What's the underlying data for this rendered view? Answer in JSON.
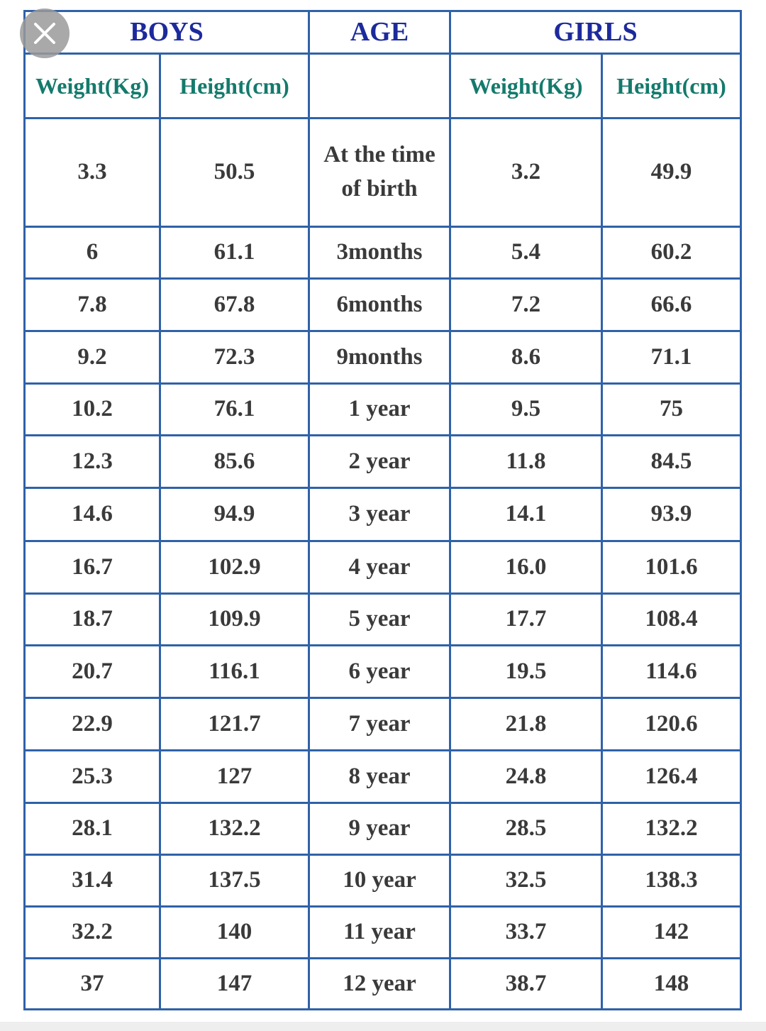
{
  "header": {
    "groups": [
      "BOYS",
      "AGE",
      "GIRLS"
    ],
    "columns": [
      "Weight(Kg)",
      "Height(cm)",
      "Weight(Kg)",
      "Height(cm)"
    ]
  },
  "table": {
    "rows": [
      [
        "3.3",
        "50.5",
        "At the time of birth",
        "3.2",
        "49.9"
      ],
      [
        "6",
        "61.1",
        "3months",
        "5.4",
        "60.2"
      ],
      [
        "7.8",
        "67.8",
        "6months",
        "7.2",
        "66.6"
      ],
      [
        "9.2",
        "72.3",
        "9months",
        "8.6",
        "71.1"
      ],
      [
        "10.2",
        "76.1",
        "1 year",
        "9.5",
        "75"
      ],
      [
        "12.3",
        "85.6",
        "2 year",
        "11.8",
        "84.5"
      ],
      [
        "14.6",
        "94.9",
        "3 year",
        "14.1",
        "93.9"
      ],
      [
        "16.7",
        "102.9",
        "4 year",
        "16.0",
        "101.6"
      ],
      [
        "18.7",
        "109.9",
        "5 year",
        "17.7",
        "108.4"
      ],
      [
        "20.7",
        "116.1",
        "6 year",
        "19.5",
        "114.6"
      ],
      [
        "22.9",
        "121.7",
        "7 year",
        "21.8",
        "120.6"
      ],
      [
        "25.3",
        "127",
        "8 year",
        "24.8",
        "126.4"
      ],
      [
        "28.1",
        "132.2",
        "9 year",
        "28.5",
        "132.2"
      ],
      [
        "31.4",
        "137.5",
        "10 year",
        "32.5",
        "138.3"
      ],
      [
        "32.2",
        "140",
        "11 year",
        "33.7",
        "142"
      ],
      [
        "37",
        "147",
        "12 year",
        "38.7",
        "148"
      ]
    ]
  }
}
